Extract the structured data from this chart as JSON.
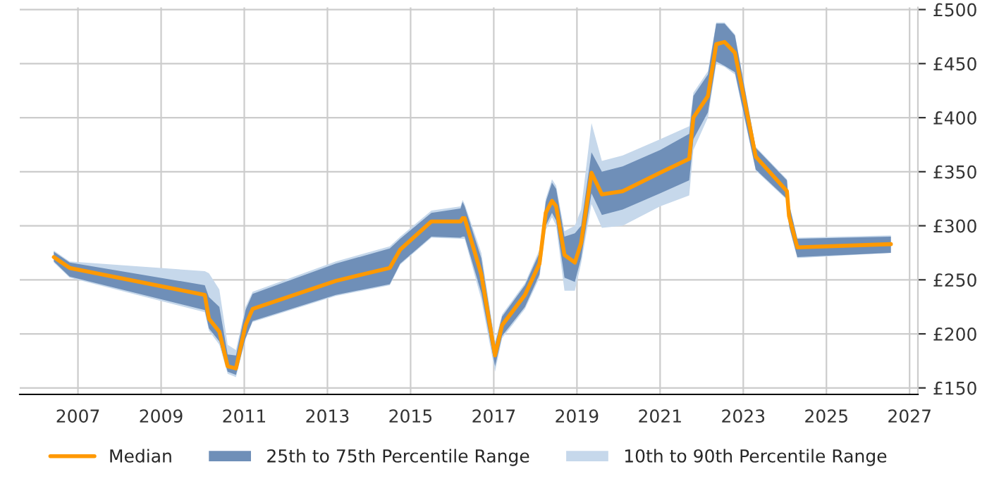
{
  "chart_data": {
    "type": "line",
    "x": [
      2006.42,
      2006.8,
      2010.05,
      2010.15,
      2010.4,
      2010.6,
      2010.8,
      2011.03,
      2011.2,
      2013.2,
      2014.5,
      2014.75,
      2015.5,
      2016.2,
      2016.25,
      2016.3,
      2016.7,
      2017.03,
      2017.2,
      2017.75,
      2018.1,
      2018.25,
      2018.4,
      2018.5,
      2018.7,
      2018.95,
      2019.1,
      2019.35,
      2019.6,
      2020.1,
      2021.0,
      2021.7,
      2021.8,
      2022.15,
      2022.35,
      2022.55,
      2022.8,
      2023.3,
      2024.05,
      2024.1,
      2024.3,
      2026.55
    ],
    "series": [
      {
        "name": "10th to 90th Percentile Range",
        "type": "area",
        "color": "#c6d8eb",
        "values": [
          null,
          null,
          null,
          null,
          null,
          null,
          null,
          null,
          null,
          null,
          null,
          null,
          null,
          null,
          null,
          null,
          null,
          null,
          null,
          null,
          null,
          null,
          null,
          null,
          null,
          null,
          null,
          null,
          null,
          null,
          null,
          null,
          null,
          null,
          null,
          null,
          null,
          null,
          null,
          null,
          null,
          null
        ],
        "lower": [
          266,
          252,
          220,
          203,
          190,
          163,
          160,
          195,
          211,
          235,
          245,
          264,
          289,
          288,
          288,
          288,
          232,
          165,
          196,
          223,
          252,
          296,
          308,
          300,
          240,
          240,
          265,
          320,
          298,
          300,
          318,
          328,
          370,
          400,
          450,
          447,
          440,
          351,
          324,
          299,
          270,
          275
        ],
        "upper": [
          277,
          267,
          258,
          256,
          241,
          190,
          185,
          225,
          239,
          267,
          281,
          290,
          314,
          318,
          324,
          320,
          275,
          193,
          218,
          247,
          278,
          325,
          343,
          337,
          295,
          300,
          315,
          395,
          360,
          365,
          380,
          392,
          423,
          443,
          488,
          488,
          477,
          373,
          343,
          321,
          289,
          291
        ]
      },
      {
        "name": "25th to 75th Percentile Range",
        "type": "area",
        "color": "#6f8fb8",
        "values": [
          null,
          null,
          null,
          null,
          null,
          null,
          null,
          null,
          null,
          null,
          null,
          null,
          null,
          null,
          null,
          null,
          null,
          null,
          null,
          null,
          null,
          null,
          null,
          null,
          null,
          null,
          null,
          null,
          null,
          null,
          null,
          null,
          null,
          null,
          null,
          null,
          null,
          null,
          null,
          null,
          null,
          null
        ],
        "lower": [
          267,
          253,
          222,
          205,
          193,
          165,
          162,
          196,
          212,
          236,
          246,
          265,
          290,
          289,
          290,
          290,
          238,
          170,
          198,
          225,
          255,
          300,
          312,
          305,
          252,
          248,
          270,
          330,
          310,
          315,
          330,
          342,
          380,
          405,
          452,
          448,
          442,
          352,
          325,
          300,
          271,
          275
        ],
        "upper": [
          276,
          266,
          245,
          234,
          225,
          181,
          180,
          222,
          237,
          265,
          279,
          288,
          312,
          316,
          322,
          318,
          270,
          190,
          216,
          245,
          275,
          322,
          340,
          334,
          290,
          293,
          300,
          368,
          350,
          355,
          370,
          385,
          420,
          440,
          487,
          487,
          476,
          372,
          342,
          320,
          288,
          290
        ]
      },
      {
        "name": "Median",
        "color": "#ff9900",
        "values": [
          271,
          261,
          236,
          214,
          202,
          170,
          168,
          208,
          223,
          249,
          261,
          278,
          304,
          304,
          307,
          307,
          255,
          180,
          208,
          236,
          265,
          312,
          323,
          318,
          273,
          266,
          284,
          349,
          329,
          332,
          349,
          362,
          400,
          420,
          468,
          470,
          460,
          364,
          332,
          309,
          280,
          283
        ]
      }
    ],
    "xlim": [
      2005.6,
      2027.2
    ],
    "xticks": [
      2007,
      2009,
      2011,
      2013,
      2015,
      2017,
      2019,
      2021,
      2023,
      2025,
      2027
    ],
    "ylim": [
      144,
      502
    ],
    "yticks": [
      {
        "value": 150,
        "label": "£150"
      },
      {
        "value": 200,
        "label": "£200"
      },
      {
        "value": 250,
        "label": "£250"
      },
      {
        "value": 300,
        "label": "£300"
      },
      {
        "value": 350,
        "label": "£350"
      },
      {
        "value": 400,
        "label": "£400"
      },
      {
        "value": 450,
        "label": "£450"
      },
      {
        "value": 500,
        "label": "£500"
      }
    ],
    "grid": true,
    "legend": "bottom"
  }
}
